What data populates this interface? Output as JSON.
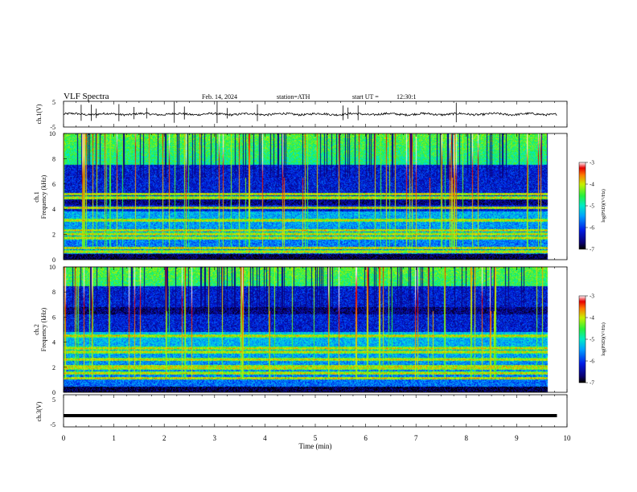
{
  "header": {
    "title": "VLF Spectra",
    "date": "Feb. 14, 2024",
    "station": "station=ATH",
    "start": "start UT =",
    "start_time": "12:30:1"
  },
  "chart_data": [
    {
      "type": "line",
      "name": "ch1-waveform",
      "ylabel": "ch.1(V)",
      "ylim": [
        -5,
        5
      ],
      "yticks": [
        "5",
        "-5"
      ],
      "xlim": [
        0,
        10
      ],
      "mean": 0.0,
      "noise_amplitude": 0.4,
      "spikes_at_min": [
        0.35,
        0.55,
        0.65,
        1.1,
        1.4,
        1.65,
        2.2,
        2.4,
        3.05,
        3.25,
        3.85,
        5.55,
        5.65,
        5.85,
        7.8
      ]
    },
    {
      "type": "heatmap",
      "name": "ch1-spectrogram",
      "ylabel": "ch.1\nFrequency (kHz)",
      "xlim": [
        0,
        10
      ],
      "data_end_min": 9.8,
      "ylim": [
        0,
        10
      ],
      "yticks": [
        "0",
        "2",
        "4",
        "6",
        "8",
        "10"
      ],
      "colorbar": {
        "label": "log(PSD)(V²/Hz)",
        "range": [
          -7,
          -3
        ],
        "ticks": [
          "-3",
          "-4",
          "-5",
          "-6",
          "-7"
        ]
      },
      "bright_bands_khz": [
        0.6,
        0.9,
        1.7,
        2.0,
        2.3,
        3.1,
        4.1,
        4.9,
        5.2
      ],
      "dark_region_khz": [
        3.8,
        7.5
      ],
      "dark_core_khz": [
        4.3,
        4.8
      ]
    },
    {
      "type": "heatmap",
      "name": "ch2-spectrogram",
      "ylabel": "ch.2\nFrequency (kHz)",
      "xlim": [
        0,
        10
      ],
      "data_end_min": 9.8,
      "ylim": [
        0,
        10
      ],
      "yticks": [
        "0",
        "2",
        "4",
        "6",
        "8",
        "10"
      ],
      "colorbar": {
        "label": "log(PSD)(V²/Hz)",
        "range": [
          -7,
          -3
        ],
        "ticks": [
          "-3",
          "-4",
          "-5",
          "-6",
          "-7"
        ]
      },
      "bright_bands_khz": [
        1.1,
        1.5,
        1.9,
        2.05,
        2.6,
        3.2,
        3.5,
        4.5
      ],
      "dark_region_khz": [
        4.8,
        8.5
      ],
      "dark_core_khz": [
        6.2,
        6.8
      ]
    },
    {
      "type": "line",
      "name": "ch3-waveform",
      "ylabel": "ch.3(V)",
      "ylim": [
        -5,
        5
      ],
      "yticks": [
        "5",
        "-5"
      ],
      "xlim": [
        0,
        10
      ],
      "data_end_min": 9.8,
      "value": -1.5
    }
  ],
  "xaxis": {
    "label": "Time (min)",
    "ticks": [
      "0",
      "1",
      "2",
      "3",
      "4",
      "5",
      "6",
      "7",
      "8",
      "9",
      "10"
    ]
  }
}
